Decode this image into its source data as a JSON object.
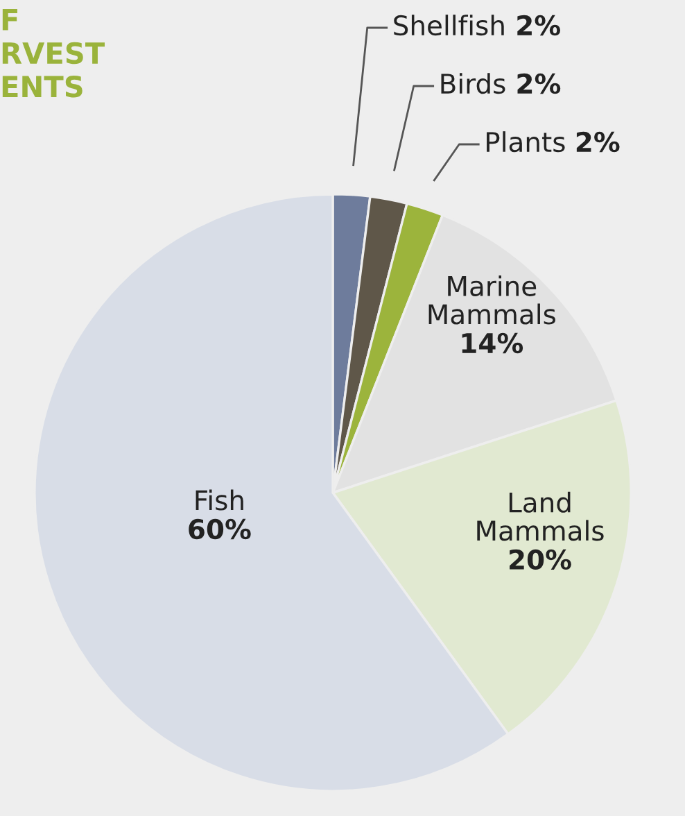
{
  "chart_data": {
    "type": "pie",
    "title": "F\nRVEST\nENTS",
    "categories": [
      "Shellfish",
      "Birds",
      "Plants",
      "Marine Mammals",
      "Land Mammals",
      "Fish"
    ],
    "values": [
      2,
      2,
      2,
      14,
      20,
      60
    ],
    "value_labels": [
      "2%",
      "2%",
      "2%",
      "14%",
      "20%",
      "60%"
    ],
    "colors": [
      "#6e7c9c",
      "#5f5749",
      "#9cb43c",
      "#e2e2e2",
      "#e1e9d1",
      "#d8dde7"
    ]
  }
}
